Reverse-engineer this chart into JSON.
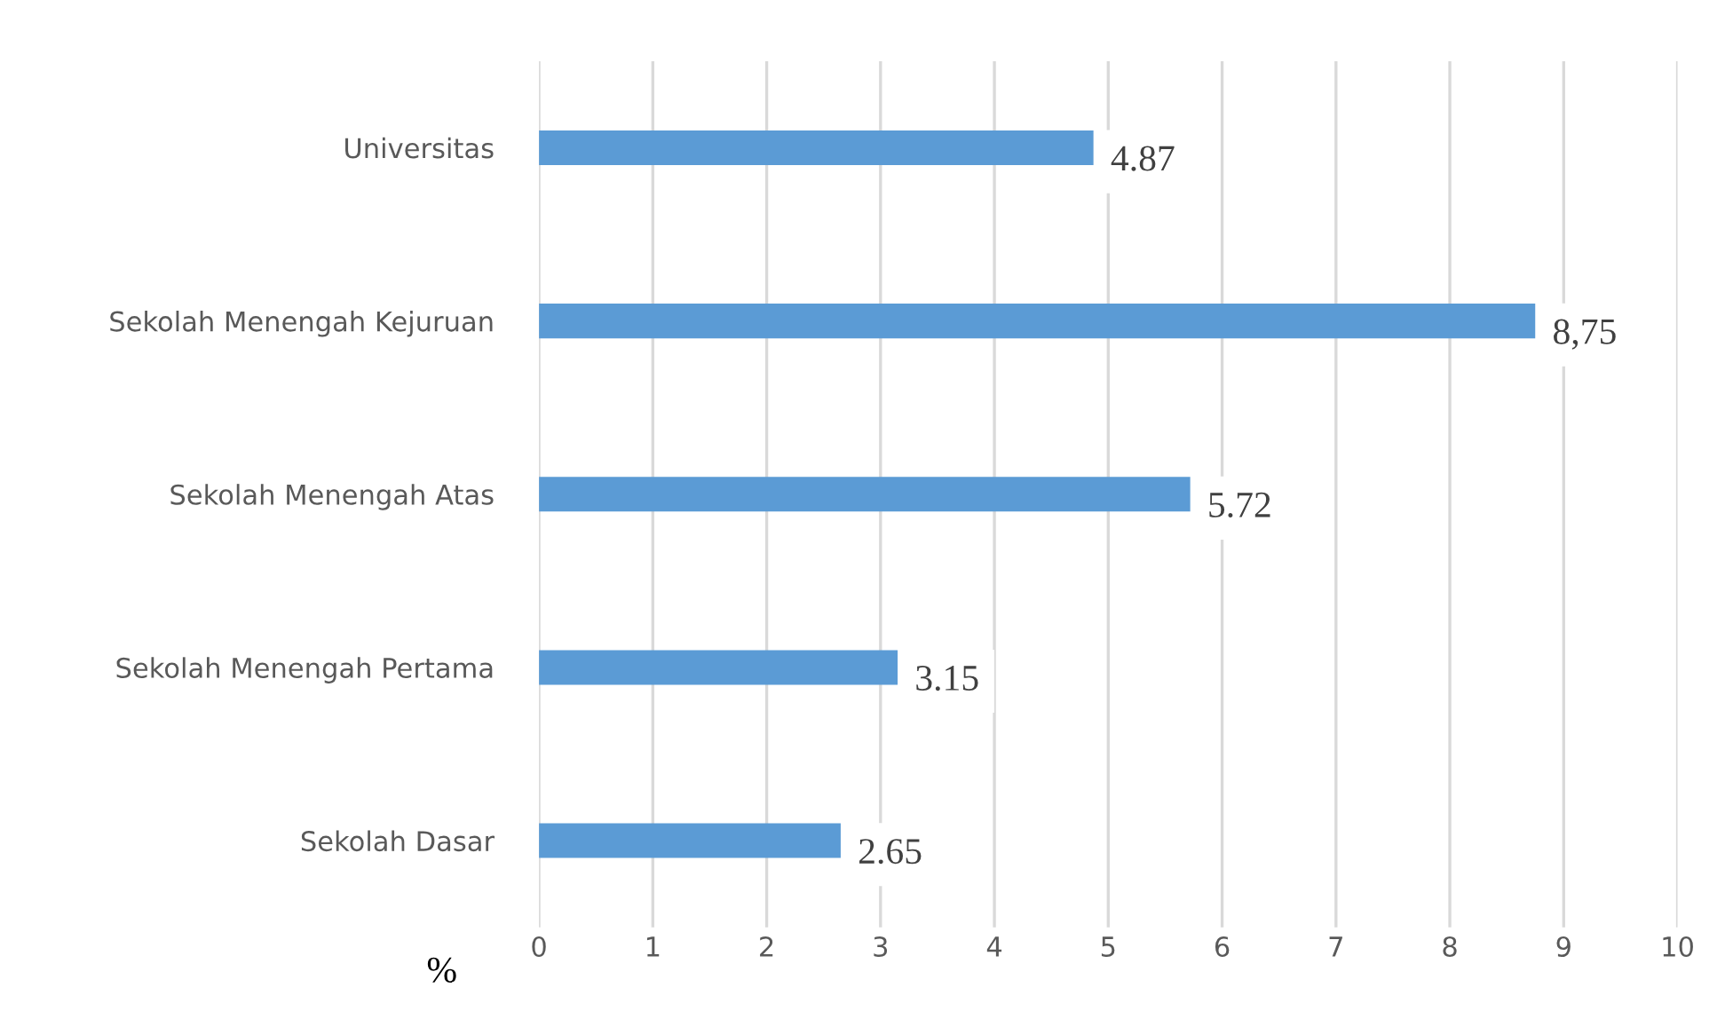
{
  "chart_data": {
    "type": "bar",
    "orientation": "horizontal",
    "xlabel": "%",
    "categories": [
      "Universitas",
      "Sekolah Menengah Kejuruan",
      "Sekolah Menengah Atas",
      "Sekolah Menengah Pertama",
      "Sekolah Dasar"
    ],
    "values": [
      4.87,
      8.75,
      5.72,
      3.15,
      2.65
    ],
    "value_labels": [
      "4.87",
      "8,75",
      "5.72",
      "3.15",
      "2.65"
    ],
    "color": "#5b9bd5",
    "xlim": [
      0,
      10
    ],
    "xticks": [
      0,
      1,
      2,
      3,
      4,
      5,
      6,
      7,
      8,
      9,
      10
    ],
    "grid": "x"
  }
}
